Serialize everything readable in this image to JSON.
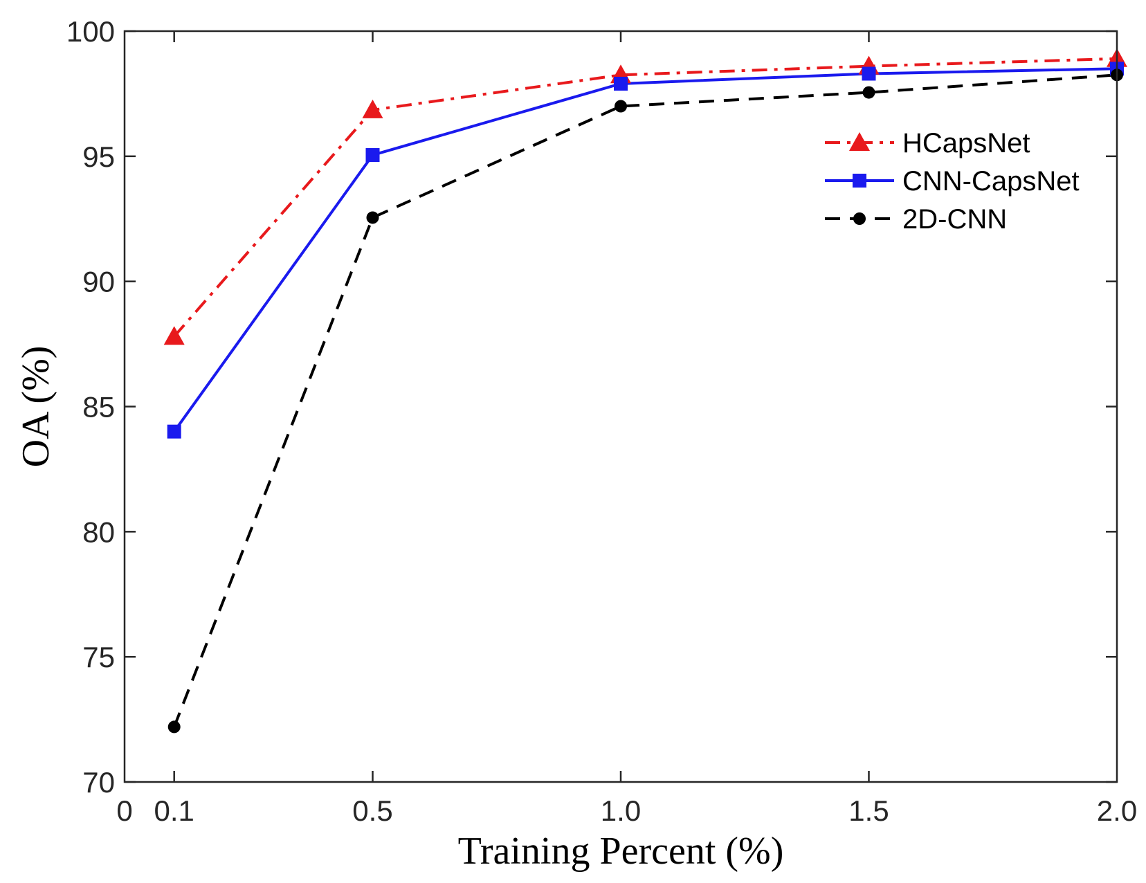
{
  "chart_data": {
    "type": "line",
    "xlabel": "Training Percent (%)",
    "ylabel": "OA (%)",
    "xlim": [
      0,
      2.0
    ],
    "ylim": [
      70,
      100
    ],
    "x_ticks": [
      0,
      0.1,
      0.5,
      1.0,
      1.5,
      2.0
    ],
    "x_tick_labels": [
      "0",
      "0.1",
      "0.5",
      "1.0",
      "1.5",
      "2.0"
    ],
    "y_ticks": [
      70,
      75,
      80,
      85,
      90,
      95,
      100
    ],
    "y_tick_labels": [
      "70",
      "75",
      "80",
      "85",
      "90",
      "95",
      "100"
    ],
    "grid": false,
    "legend_position": "top-right",
    "x": [
      0.1,
      0.5,
      1.0,
      1.5,
      2.0
    ],
    "series": [
      {
        "name": "HCapsNet",
        "values": [
          87.8,
          96.85,
          98.25,
          98.6,
          98.9
        ],
        "color": "#e8191c",
        "line_style": "dash-dot",
        "marker": "triangle"
      },
      {
        "name": "CNN-CapsNet",
        "values": [
          84.0,
          95.05,
          97.9,
          98.3,
          98.5
        ],
        "color": "#1a1aee",
        "line_style": "solid",
        "marker": "square"
      },
      {
        "name": "2D-CNN",
        "values": [
          72.2,
          92.55,
          97.0,
          97.55,
          98.25
        ],
        "color": "#000000",
        "line_style": "dashed",
        "marker": "circle"
      }
    ]
  }
}
